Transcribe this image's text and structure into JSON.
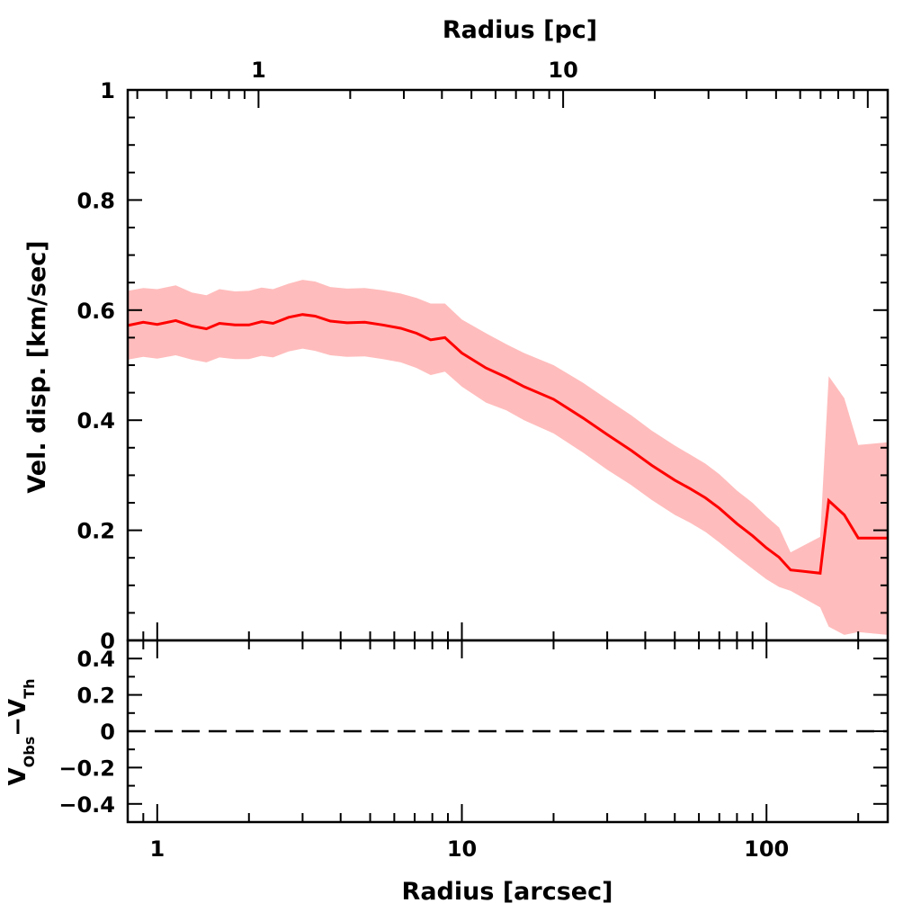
{
  "chart_data": [
    {
      "type": "line",
      "panel": "main",
      "x_scale": "log",
      "xlabel_bottom": "Radius [arcsec]",
      "xlabel_top": "Radius [pc]",
      "ylabel": "Vel. disp. [km/sec]",
      "xlim": [
        0.8,
        250
      ],
      "ylim": [
        0,
        1
      ],
      "y_ticks": [
        0,
        0.2,
        0.4,
        0.6,
        0.8,
        1
      ],
      "y_tick_labels": [
        "0",
        "0.2",
        "0.4",
        "0.6",
        "0.8",
        "1"
      ],
      "x_ticks": [
        1,
        10,
        100
      ],
      "x_tick_labels": [
        "1",
        "10",
        "100"
      ],
      "top_x_ticks_arcsec": [
        2.15,
        21.5
      ],
      "top_x_tick_labels": [
        "1",
        "10"
      ],
      "series": [
        {
          "name": "velocity dispersion",
          "color": "#ff0000",
          "band_color": "#ffbcbc",
          "x": [
            0.8,
            0.9,
            1.0,
            1.15,
            1.3,
            1.45,
            1.6,
            1.8,
            2.0,
            2.2,
            2.4,
            2.7,
            3.0,
            3.3,
            3.7,
            4.2,
            4.8,
            5.5,
            6.3,
            7.1,
            7.9,
            8.8,
            10,
            12,
            14,
            16,
            20,
            25,
            30,
            36,
            42,
            50,
            56,
            63,
            70,
            80,
            90,
            100,
            110,
            120,
            150,
            160,
            180,
            200,
            250
          ],
          "y": [
            0.572,
            0.578,
            0.574,
            0.581,
            0.571,
            0.566,
            0.576,
            0.573,
            0.573,
            0.579,
            0.576,
            0.587,
            0.592,
            0.589,
            0.58,
            0.577,
            0.578,
            0.573,
            0.567,
            0.558,
            0.546,
            0.55,
            0.522,
            0.495,
            0.478,
            0.461,
            0.438,
            0.404,
            0.374,
            0.345,
            0.318,
            0.291,
            0.276,
            0.259,
            0.24,
            0.212,
            0.19,
            0.168,
            0.151,
            0.128,
            0.122,
            0.254,
            0.228,
            0.186,
            0.186
          ],
          "y_upper": [
            0.635,
            0.64,
            0.638,
            0.645,
            0.632,
            0.627,
            0.638,
            0.634,
            0.635,
            0.641,
            0.638,
            0.648,
            0.655,
            0.652,
            0.642,
            0.639,
            0.64,
            0.636,
            0.63,
            0.622,
            0.612,
            0.612,
            0.583,
            0.558,
            0.538,
            0.522,
            0.5,
            0.468,
            0.438,
            0.409,
            0.381,
            0.354,
            0.338,
            0.321,
            0.302,
            0.272,
            0.25,
            0.225,
            0.205,
            0.16,
            0.188,
            0.48,
            0.44,
            0.355,
            0.36
          ],
          "y_lower": [
            0.51,
            0.515,
            0.512,
            0.518,
            0.51,
            0.505,
            0.514,
            0.511,
            0.511,
            0.517,
            0.514,
            0.525,
            0.53,
            0.526,
            0.518,
            0.515,
            0.516,
            0.511,
            0.505,
            0.495,
            0.482,
            0.488,
            0.461,
            0.432,
            0.418,
            0.4,
            0.376,
            0.341,
            0.31,
            0.282,
            0.255,
            0.228,
            0.214,
            0.197,
            0.178,
            0.152,
            0.13,
            0.111,
            0.097,
            0.09,
            0.06,
            0.025,
            0.01,
            0.015,
            0.01
          ]
        }
      ]
    },
    {
      "type": "line",
      "panel": "residuals",
      "x_scale": "log",
      "xlabel": "Radius [arcsec]",
      "ylabel": "V_Obs − V_Th",
      "ylim": [
        -0.5,
        0.5
      ],
      "y_ticks": [
        -0.4,
        -0.2,
        0,
        0.2,
        0.4
      ],
      "y_tick_labels": [
        "−0.4",
        "−0.2",
        "0",
        "0.2",
        "0.4"
      ],
      "series": [
        {
          "name": "zero line",
          "style": "dashed",
          "color": "#000000",
          "x": [
            0.8,
            250
          ],
          "y": [
            0,
            0
          ]
        }
      ]
    }
  ],
  "labels": {
    "top_axis_title": "Radius [pc]",
    "bottom_axis_title": "Radius [arcsec]",
    "main_y_title": "Vel. disp. [km/sec]",
    "res_y_title_v1": "V",
    "res_y_title_sub1": "Obs",
    "res_y_title_minus": "−V",
    "res_y_title_sub2": "Th"
  }
}
